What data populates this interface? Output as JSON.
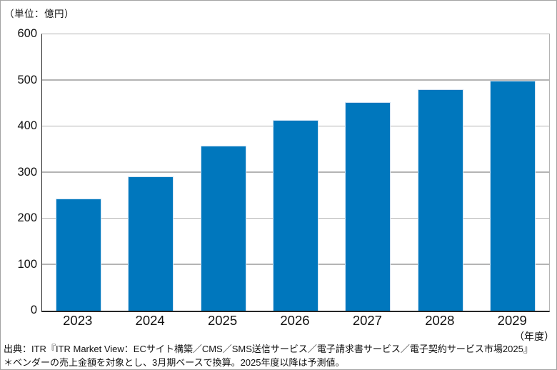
{
  "header": {
    "unit_label": "（単位：億円）"
  },
  "x_axis": {
    "unit_label": "（年度）"
  },
  "footer": {
    "source": "出典：ITR『ITR Market View：ECサイト構築／CMS／SMS送信サービス／電子請求書サービス／電子契約サービス市場2025』",
    "note": "＊ベンダーの売上金額を対象とし、3月期ベースで換算。2025年度以降は予測値。"
  },
  "chart_data": {
    "type": "bar",
    "title": "",
    "categories": [
      "2023",
      "2024",
      "2025",
      "2026",
      "2027",
      "2028",
      "2029"
    ],
    "values": [
      243,
      292,
      358,
      414,
      453,
      480,
      500
    ],
    "xlabel": "年度",
    "ylabel": "億円",
    "ylim": [
      0,
      600
    ],
    "yticks": [
      0,
      100,
      200,
      300,
      400,
      500,
      600
    ],
    "grid": true,
    "legend": false,
    "bar_color": "#0077bd",
    "bar_border_color": "#cfe2f3",
    "gridline_color": "#b4b4b4",
    "axis_color": "#262626"
  }
}
